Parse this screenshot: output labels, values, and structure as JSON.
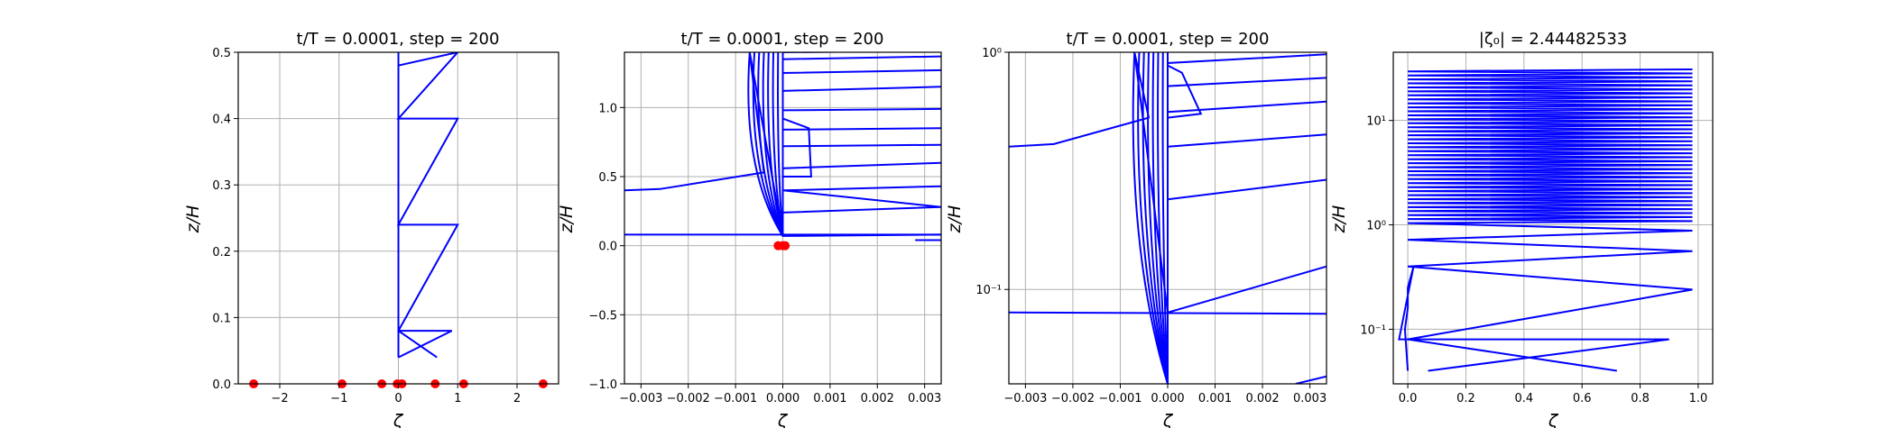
{
  "chart_data": [
    {
      "type": "line",
      "title": "t/T = 0.0001, step = 200",
      "xlabel": "ζ",
      "ylabel": "z/H",
      "xlim": [
        -2.7,
        2.7
      ],
      "ylim": [
        0,
        0.5
      ],
      "xscale": "linear",
      "yscale": "linear",
      "grid": true,
      "xticks": [
        -2,
        -1,
        0,
        1,
        2
      ],
      "yticks": [
        0.0,
        0.1,
        0.2,
        0.3,
        0.4,
        0.5
      ],
      "xtick_labels": [
        "−2",
        "−1",
        "0",
        "1",
        "2"
      ],
      "ytick_labels": [
        "0.0",
        "0.1",
        "0.2",
        "0.3",
        "0.4",
        "0.5"
      ],
      "series": [
        {
          "color": "#0000ff",
          "x": [
            0.65,
            0.0,
            0.0,
            1.0,
            0.0,
            0.0,
            1.0,
            0.0,
            0.0,
            1.0,
            0.0,
            0.0,
            0.9,
            0.0
          ],
          "y": [
            0.04,
            0.08,
            0.08,
            0.24,
            0.24,
            0.24,
            0.4,
            0.4,
            0.4,
            0.5,
            0.48,
            0.08,
            0.08,
            0.04
          ]
        },
        {
          "color": "#0000ff",
          "x": [
            0.0,
            0.0
          ],
          "y": [
            0.04,
            0.5
          ]
        }
      ],
      "markers": {
        "color": "#ff0000",
        "x": [
          -2.44,
          -0.95,
          -0.28,
          -0.02,
          0.06,
          0.62,
          1.1,
          2.44
        ],
        "y": [
          0,
          0,
          0,
          0,
          0,
          0,
          0,
          0
        ]
      }
    },
    {
      "type": "line",
      "title": "t/T = 0.0001, step = 200",
      "xlabel": "ζ",
      "ylabel": "z/H",
      "xlim": [
        -0.00335,
        0.00335
      ],
      "ylim": [
        -1.0,
        1.4
      ],
      "xscale": "linear",
      "yscale": "linear",
      "grid": true,
      "xticks": [
        -0.003,
        -0.002,
        -0.001,
        0.0,
        0.001,
        0.002,
        0.003
      ],
      "yticks": [
        -1.0,
        -0.5,
        0.0,
        0.5,
        1.0
      ],
      "xtick_labels": [
        "−0.003",
        "−0.002",
        "−0.001",
        "0.000",
        "0.001",
        "0.002",
        "0.003"
      ],
      "ytick_labels": [
        "−1.0",
        "−0.5",
        "0.0",
        "0.5",
        "1.0"
      ],
      "series": [
        {
          "color": "#0000ff",
          "x": [
            -0.00335,
            -0.0026,
            -0.0004,
            -0.0007,
            0.0,
            0.0,
            0.00335,
            0.0,
            0.0,
            0.00335,
            0.0,
            0.0,
            0.00335,
            0.0,
            0.0,
            0.00335,
            0.0,
            0.0,
            0.00335,
            0.0,
            0.0,
            0.00335,
            0.0,
            0.0,
            0.00335,
            0.0,
            0.0,
            0.00335,
            0.0,
            0.0,
            0.00335,
            0.0,
            0.0,
            0.00335,
            0.0,
            0.0,
            0.00335
          ],
          "y": [
            0.4,
            0.41,
            0.53,
            1.4,
            0.07,
            0.07,
            0.08,
            0.07,
            0.24,
            0.28,
            0.4,
            0.4,
            0.43,
            0.4,
            0.56,
            0.6,
            0.56,
            0.72,
            0.73,
            0.72,
            0.84,
            0.85,
            0.84,
            0.98,
            0.99,
            0.98,
            1.12,
            1.15,
            1.12,
            1.25,
            1.27,
            1.25,
            1.35,
            1.37,
            1.35,
            1.4,
            1.41
          ]
        },
        {
          "color": "#0000ff",
          "x": [
            -0.00335,
            0.00335
          ],
          "y": [
            0.08,
            0.08
          ]
        },
        {
          "color": "#0000ff",
          "x": [
            0.0028,
            0.00335
          ],
          "y": [
            0.04,
            0.04
          ]
        },
        {
          "color": "#0000ff",
          "x": [
            0.0,
            0.00055,
            0.0006,
            0.0
          ],
          "y": [
            0.92,
            0.85,
            0.5,
            0.5
          ]
        }
      ],
      "fan_x": [
        -0.0007,
        -0.0006,
        -0.0005,
        -0.0004,
        -0.0003,
        -0.0002,
        -0.0001,
        0.0
      ],
      "markers": {
        "color": "#ff0000",
        "x": [
          -0.0001,
          0.0,
          5e-05
        ],
        "y": [
          0,
          0,
          0
        ]
      }
    },
    {
      "type": "line",
      "title": "t/T = 0.0001, step = 200",
      "xlabel": "ζ",
      "ylabel": "z/H",
      "xlim": [
        -0.00335,
        0.00335
      ],
      "ylim": [
        0.04,
        1.0
      ],
      "xscale": "linear",
      "yscale": "log",
      "grid": true,
      "xticks": [
        -0.003,
        -0.002,
        -0.001,
        0.0,
        0.001,
        0.002,
        0.003
      ],
      "yticks": [
        0.1,
        1.0
      ],
      "xtick_labels": [
        "−0.003",
        "−0.002",
        "−0.001",
        "0.000",
        "0.001",
        "0.002",
        "0.003"
      ],
      "ytick_labels": [
        "10⁻¹",
        "10⁰"
      ],
      "series": [
        {
          "color": "#0000ff",
          "x": [
            -0.00335,
            -0.0024,
            -0.0004,
            -0.0007,
            0.0,
            0.0,
            0.00335,
            0.0,
            0.0,
            0.00335,
            0.0,
            0.0,
            0.00335,
            0.0,
            0.0,
            0.00335,
            0.0,
            0.0,
            0.00335,
            0.0,
            0.0,
            0.00335
          ],
          "y": [
            0.4,
            0.41,
            0.53,
            1.0,
            0.08,
            0.08,
            0.125,
            0.08,
            0.24,
            0.29,
            0.24,
            0.4,
            0.45,
            0.4,
            0.56,
            0.62,
            0.56,
            0.72,
            0.78,
            0.72,
            0.9,
            0.98
          ]
        },
        {
          "color": "#0000ff",
          "x": [
            -0.00335,
            0.00335
          ],
          "y": [
            0.08,
            0.079
          ]
        },
        {
          "color": "#0000ff",
          "x": [
            0.0027,
            0.00335
          ],
          "y": [
            0.04,
            0.043
          ]
        },
        {
          "color": "#0000ff",
          "x": [
            0.0,
            0.0003,
            0.0007,
            0.0
          ],
          "y": [
            0.88,
            0.82,
            0.55,
            0.53
          ]
        }
      ],
      "fan_x": [
        -0.0007,
        -0.0006,
        -0.0005,
        -0.0004,
        -0.0003,
        -0.0002,
        -0.0001,
        0.0
      ]
    },
    {
      "type": "line",
      "title": "|ζ₀| = 2.44482533",
      "xlabel": "ζ",
      "ylabel": "z/H",
      "xlim": [
        -0.05,
        1.05
      ],
      "ylim": [
        0.03,
        45
      ],
      "xscale": "linear",
      "yscale": "log",
      "grid": true,
      "xticks": [
        0.0,
        0.2,
        0.4,
        0.6,
        0.8,
        1.0
      ],
      "yticks": [
        0.1,
        1.0,
        10.0
      ],
      "xtick_labels": [
        "0.0",
        "0.2",
        "0.4",
        "0.6",
        "0.8",
        "1.0"
      ],
      "ytick_labels": [
        "10⁻¹",
        "10⁰",
        "10¹"
      ],
      "zigzag": {
        "color": "#0000ff",
        "x_left": 0.0,
        "x_right": 0.98,
        "y_start": 0.08,
        "y_end": 32,
        "y_step": 0.16,
        "linear_part_end": 1.0
      },
      "series": [
        {
          "color": "#0000ff",
          "x": [
            0.72,
            0.0,
            0.0,
            0.9,
            0.07
          ],
          "y": [
            0.04,
            0.08,
            0.08,
            0.08,
            0.04
          ]
        },
        {
          "color": "#0000ff",
          "x": [
            0.0,
            -0.01,
            0.0,
            0.0,
            0.02,
            -0.03,
            0.0
          ],
          "y": [
            0.04,
            0.1,
            0.16,
            0.25,
            0.4,
            0.08,
            0.08
          ]
        }
      ]
    }
  ]
}
